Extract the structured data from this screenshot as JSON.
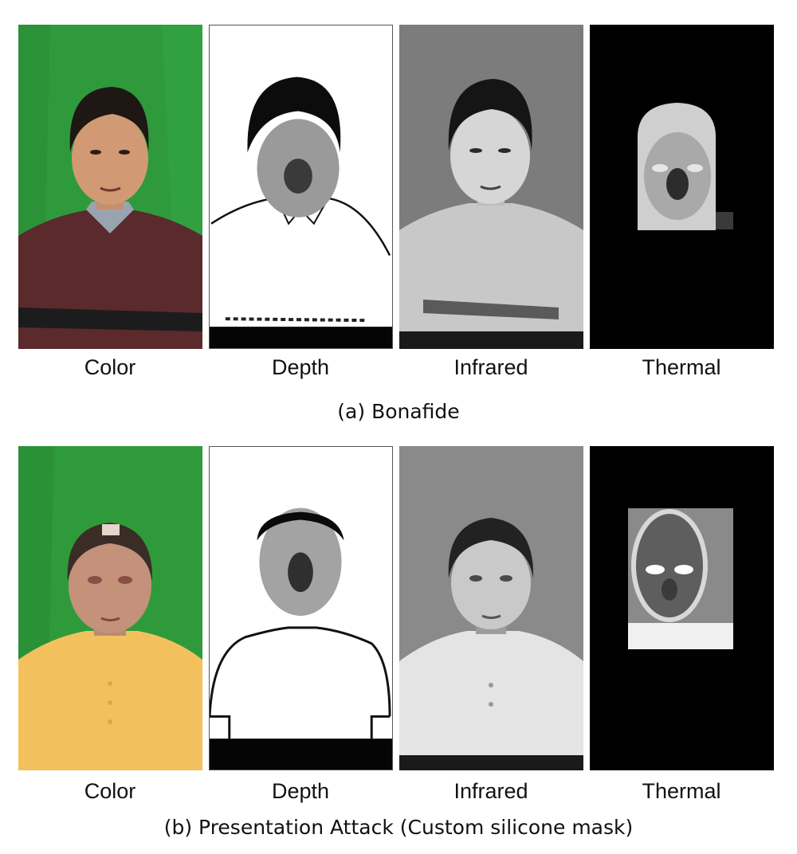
{
  "figure": {
    "rows": [
      {
        "id": "bonafide",
        "labels": [
          "Color",
          "Depth",
          "Infrared",
          "Thermal"
        ],
        "caption": "(a) Bonafide"
      },
      {
        "id": "attack",
        "labels": [
          "Color",
          "Depth",
          "Infrared",
          "Thermal"
        ],
        "caption": "(b) Presentation Attack (Custom silicone mask)"
      }
    ],
    "colors": {
      "green_screen": "#2f9a3a",
      "sweater": "#5a2a2c",
      "shirt_yellow": "#f2c15e",
      "skin": "#c9957a",
      "mask_skin": "#b98a72",
      "hair": "#1e1714"
    }
  }
}
